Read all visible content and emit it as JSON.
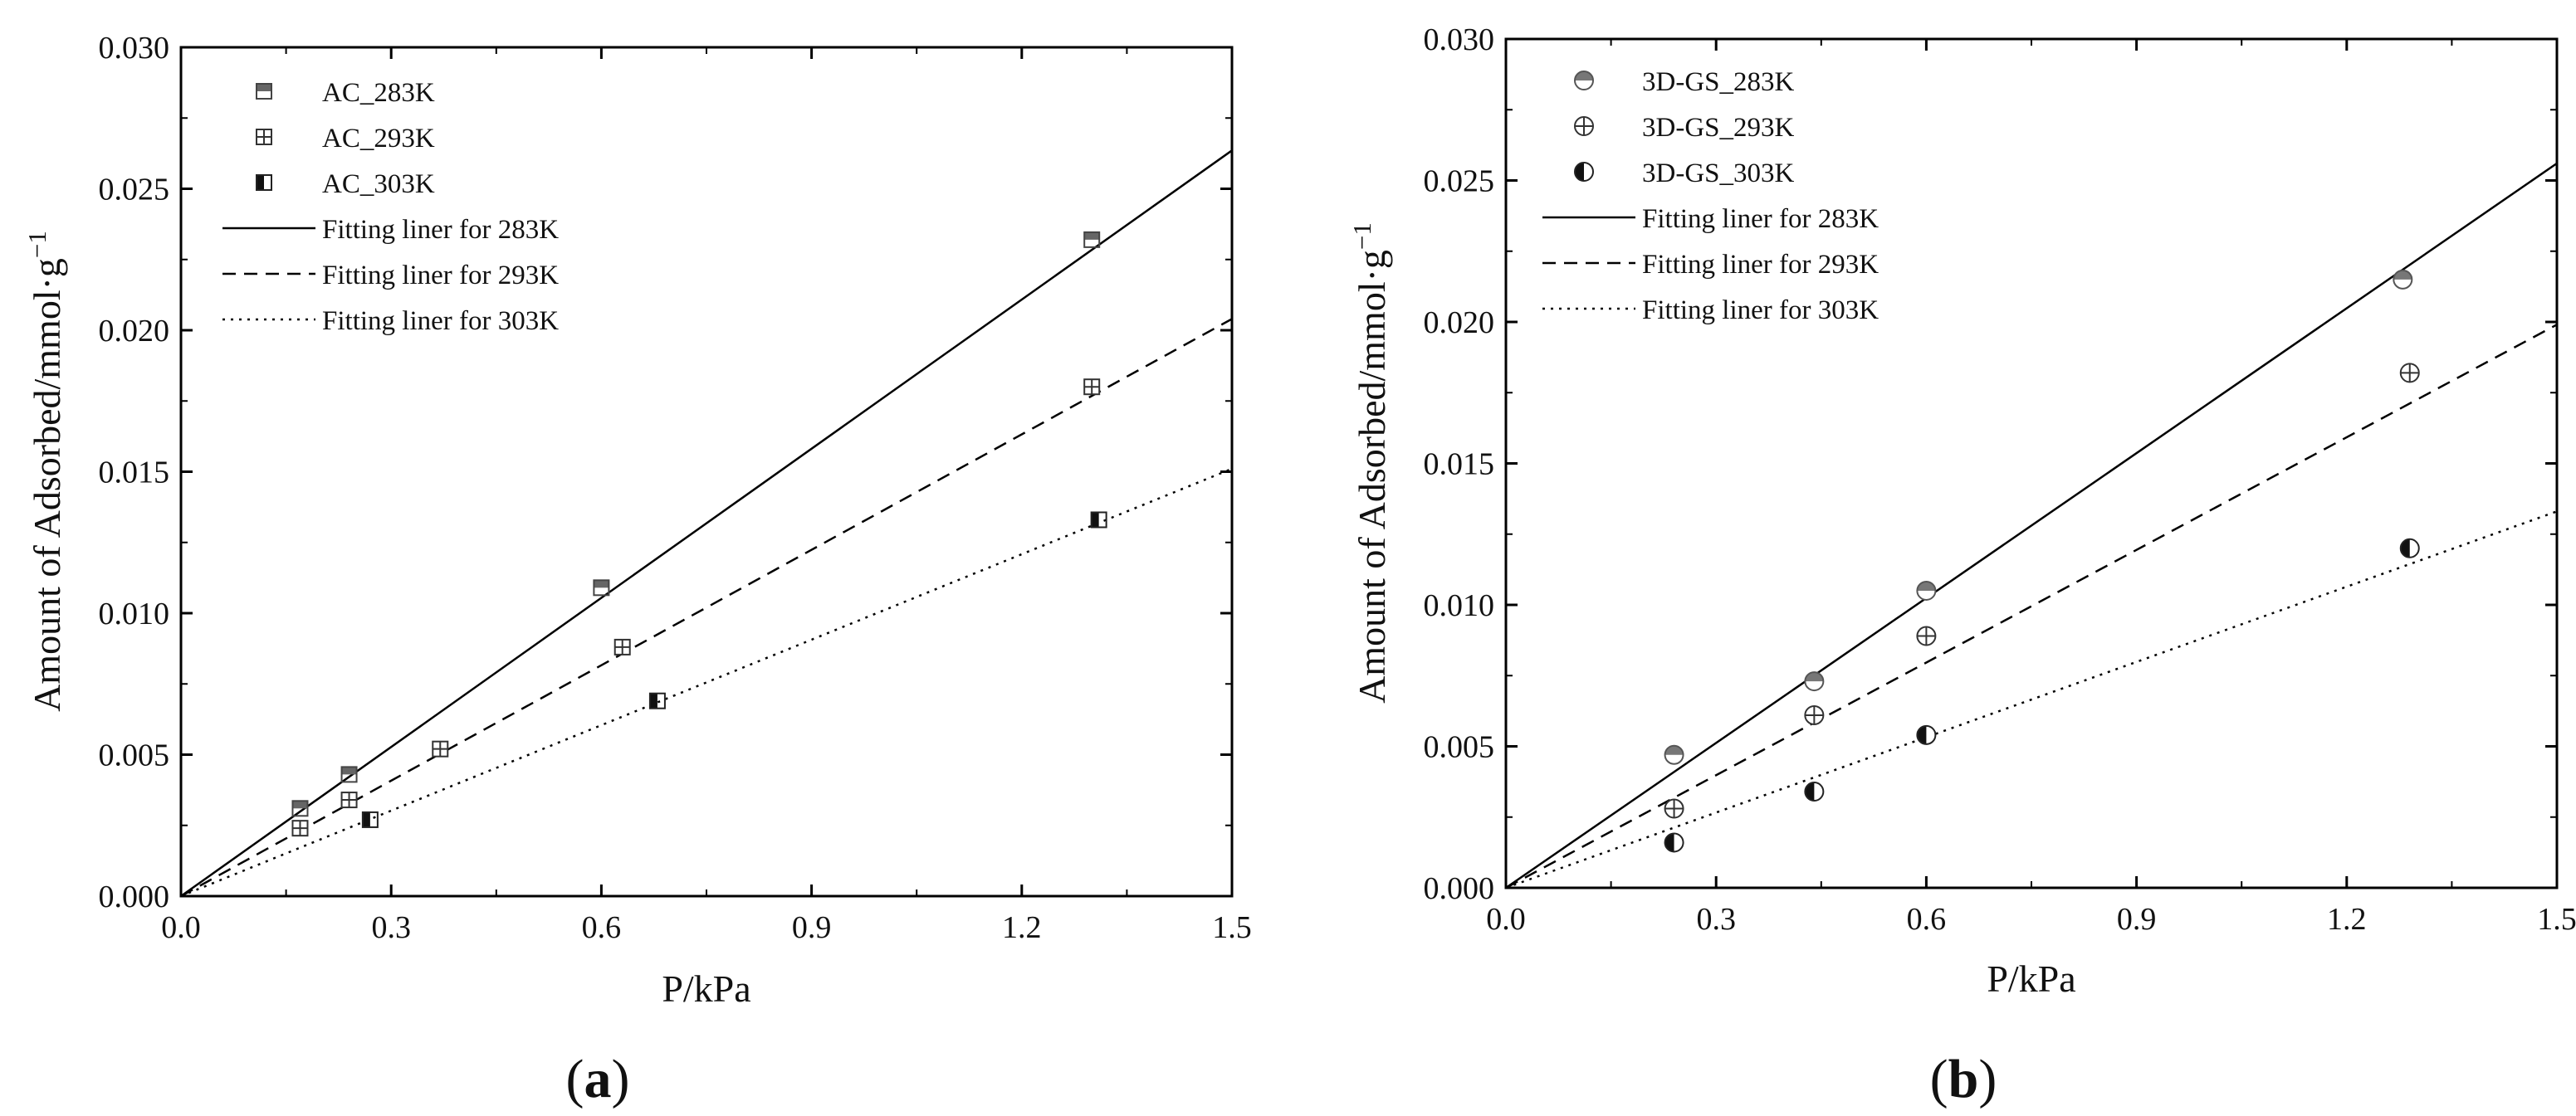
{
  "chart_data": [
    {
      "type": "scatter",
      "panel_label": "a",
      "xlabel": "P/kPa",
      "ylabel": "Amount of Adsorbed/mmol·g",
      "ylabel_superscript": "−1",
      "xlim": [
        0,
        1.5
      ],
      "ylim": [
        0,
        0.03
      ],
      "xticks": [
        "0.0",
        "0.3",
        "0.6",
        "0.9",
        "1.2",
        "1.5"
      ],
      "yticks": [
        "0.000",
        "0.005",
        "0.010",
        "0.015",
        "0.020",
        "0.025",
        "0.030"
      ],
      "legend_position": "top-left",
      "series": [
        {
          "name": "AC_283K",
          "marker": "square-top-half",
          "x": [
            0.17,
            0.24,
            0.6,
            1.3
          ],
          "y": [
            0.0031,
            0.0043,
            0.0109,
            0.0232
          ]
        },
        {
          "name": "AC_293K",
          "marker": "square-cross",
          "x": [
            0.17,
            0.24,
            0.37,
            0.63,
            1.3
          ],
          "y": [
            0.0024,
            0.0034,
            0.0052,
            0.0088,
            0.018
          ]
        },
        {
          "name": "AC_303K",
          "marker": "square-left-half",
          "x": [
            0.27,
            0.68,
            1.31
          ],
          "y": [
            0.0027,
            0.0069,
            0.0133
          ]
        }
      ],
      "fits": [
        {
          "name": "Fitting liner for 283K",
          "style": "solid",
          "slope": 0.01757
        },
        {
          "name": "Fitting liner for 293K",
          "style": "dashed",
          "slope": 0.0136
        },
        {
          "name": "Fitting liner for 303K",
          "style": "dotted",
          "slope": 0.01007
        }
      ]
    },
    {
      "type": "scatter",
      "panel_label": "b",
      "xlabel": "P/kPa",
      "ylabel": "Amount of Adsorbed/mmol·g",
      "ylabel_superscript": "−1",
      "xlim": [
        0,
        1.5
      ],
      "ylim": [
        0,
        0.03
      ],
      "xticks": [
        "0.0",
        "0.3",
        "0.6",
        "0.9",
        "1.2",
        "1.5"
      ],
      "yticks": [
        "0.000",
        "0.005",
        "0.010",
        "0.015",
        "0.020",
        "0.025",
        "0.030"
      ],
      "legend_position": "top-left",
      "series": [
        {
          "name": "3D-GS_283K",
          "marker": "circle-top-half",
          "x": [
            0.24,
            0.44,
            0.6,
            1.28
          ],
          "y": [
            0.0047,
            0.0073,
            0.0105,
            0.0215
          ]
        },
        {
          "name": "3D-GS_293K",
          "marker": "circle-cross",
          "x": [
            0.24,
            0.44,
            0.6,
            1.29
          ],
          "y": [
            0.0028,
            0.0061,
            0.0089,
            0.0182
          ]
        },
        {
          "name": "3D-GS_303K",
          "marker": "circle-left-half",
          "x": [
            0.24,
            0.44,
            0.6,
            1.29
          ],
          "y": [
            0.0016,
            0.0034,
            0.0054,
            0.012
          ]
        }
      ],
      "fits": [
        {
          "name": "Fitting liner for 283K",
          "style": "solid",
          "slope": 0.01707
        },
        {
          "name": "Fitting liner for 293K",
          "style": "dashed",
          "slope": 0.01327
        },
        {
          "name": "Fitting liner for 303K",
          "style": "dotted",
          "slope": 0.00887
        }
      ]
    }
  ]
}
